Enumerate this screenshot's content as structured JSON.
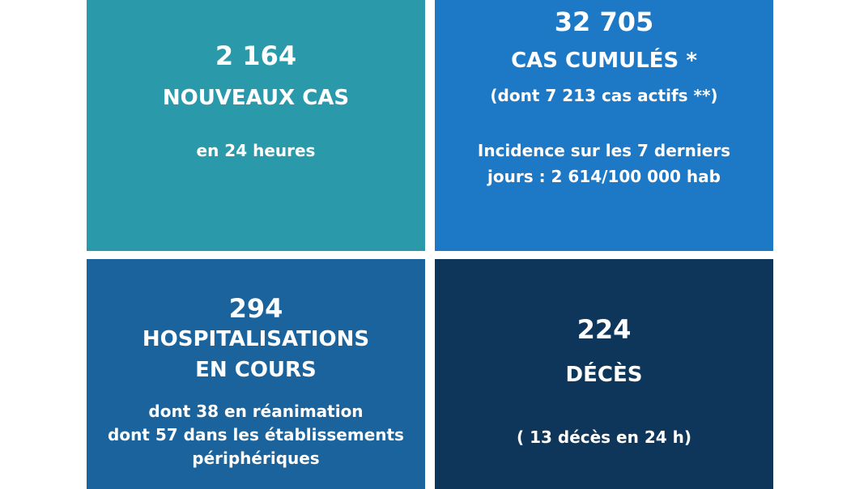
{
  "colors": {
    "tile_new_cases": "#2A9AAB",
    "tile_cumulative": "#1D79C6",
    "tile_hospital": "#1A639C",
    "tile_deaths": "#0E365B",
    "text": "#FFFFFF"
  },
  "tiles": {
    "new_cases": {
      "value": "2 164",
      "label": "NOUVEAUX CAS",
      "detail": "en 24 heures"
    },
    "cumulative": {
      "value": "32 705",
      "label": "CAS CUMULÉS *",
      "detail": "(dont 7 213 cas actifs **)",
      "incidence_line1": "Incidence sur les 7 derniers",
      "incidence_line2": "jours : 2 614/100 000 hab"
    },
    "hospital": {
      "value": "294",
      "label_line1": "HOSPITALISATIONS",
      "label_line2": "EN COURS",
      "detail_line1": "dont 38 en réanimation",
      "detail_line2": "dont 57 dans les établissements",
      "detail_line3": "périphériques"
    },
    "deaths": {
      "value": "224",
      "label": "DÉCÈS",
      "detail": "( 13 décès en 24 h)"
    }
  }
}
